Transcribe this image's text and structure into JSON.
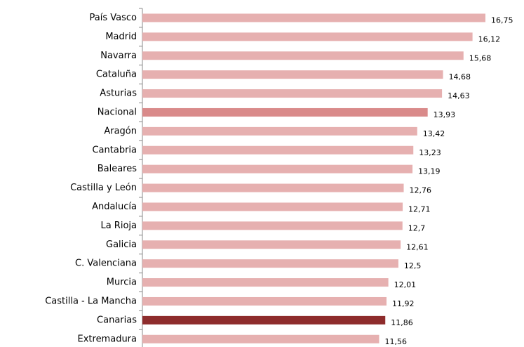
{
  "chart_data": {
    "type": "barh",
    "categories": [
      "País Vasco",
      "Madrid",
      "Navarra",
      "Cataluña",
      "Asturias",
      "Nacional",
      "Aragón",
      "Cantabria",
      "Baleares",
      "Castilla y León",
      "Andalucía",
      "La Rioja",
      "Galicia",
      "C. Valenciana",
      "Murcia",
      "Castilla - La Mancha",
      "Canarias",
      "Extremadura"
    ],
    "values": [
      16.75,
      16.12,
      15.68,
      14.68,
      14.63,
      13.93,
      13.42,
      13.23,
      13.19,
      12.76,
      12.71,
      12.7,
      12.61,
      12.5,
      12.01,
      11.92,
      11.86,
      11.56
    ],
    "value_labels": [
      "16,75",
      "16,12",
      "15,68",
      "14,68",
      "14,63",
      "13,93",
      "13,42",
      "13,23",
      "13,19",
      "12,76",
      "12,71",
      "12,7",
      "12,61",
      "12,5",
      "12,01",
      "11,92",
      "11,86",
      "11,56"
    ],
    "colors": [
      "#e6b0b0",
      "#e6b0b0",
      "#e6b0b0",
      "#e6b0b0",
      "#e6b0b0",
      "#d98a8a",
      "#e6b0b0",
      "#e6b0b0",
      "#e6b0b0",
      "#e6b0b0",
      "#e6b0b0",
      "#e6b0b0",
      "#e6b0b0",
      "#e6b0b0",
      "#e6b0b0",
      "#e6b0b0",
      "#8e2c2c",
      "#e6b0b0"
    ]
  }
}
